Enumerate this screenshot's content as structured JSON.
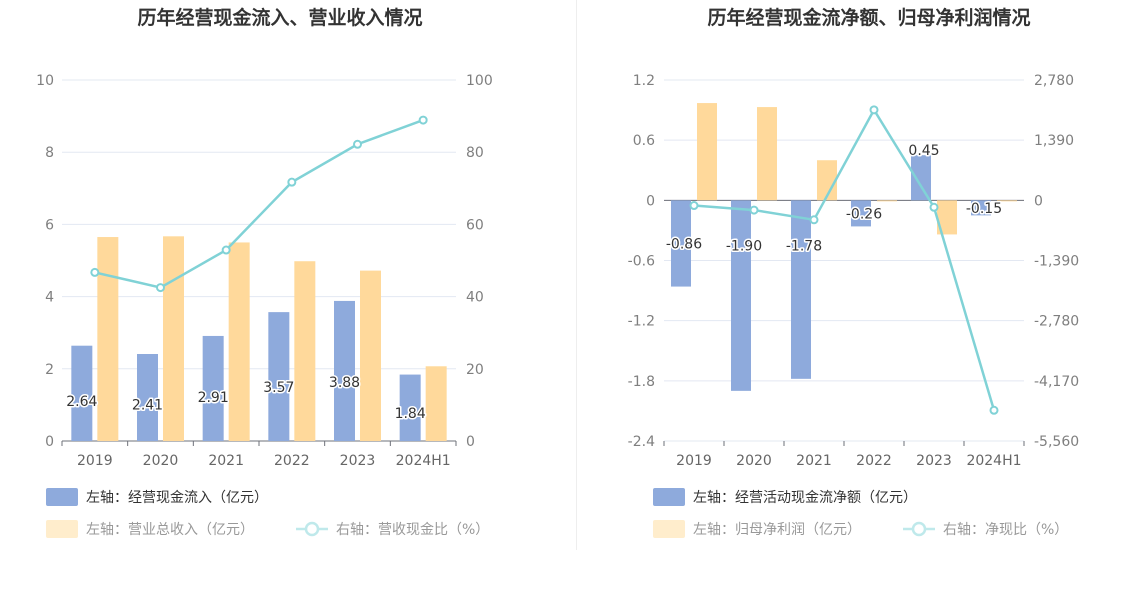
{
  "charts_layout": "two-panel",
  "chart_data": [
    {
      "type": "bar",
      "title": "历年经营现金流入、营业收入情况",
      "categories": [
        "2019",
        "2020",
        "2021",
        "2022",
        "2023",
        "2024H1"
      ],
      "y_left": {
        "ylim": [
          0,
          10
        ],
        "ticks": [
          "0",
          "2",
          "4",
          "6",
          "8",
          "10"
        ]
      },
      "y_right": {
        "ylim": [
          0,
          100
        ],
        "ticks": [
          "0",
          "20",
          "40",
          "60",
          "80",
          "100"
        ]
      },
      "series": [
        {
          "name": "左轴：经营现金流入（亿元）",
          "type": "bar",
          "axis": "left",
          "color": "#8eaadc",
          "values": [
            2.64,
            2.41,
            2.91,
            3.57,
            3.88,
            1.84
          ],
          "labels": [
            "2.64",
            "2.41",
            "2.91",
            "3.57",
            "3.88",
            "1.84"
          ]
        },
        {
          "name": "左轴：营业总收入（亿元）",
          "type": "bar",
          "axis": "left",
          "color": "#ffd99b",
          "values": [
            5.65,
            5.67,
            5.5,
            4.98,
            4.72,
            2.07
          ]
        },
        {
          "name": "右轴：营收现金比（%）",
          "type": "line",
          "axis": "right",
          "color": "#80d2d6",
          "values": [
            46.7,
            42.5,
            52.9,
            71.7,
            82.2,
            88.9
          ]
        }
      ],
      "legend_position": "bottom-left",
      "grid": true
    },
    {
      "type": "bar",
      "title": "历年经营现金流净额、归母净利润情况",
      "categories": [
        "2019",
        "2020",
        "2021",
        "2022",
        "2023",
        "2024H1"
      ],
      "y_left": {
        "ylim": [
          -2.4,
          1.2
        ],
        "ticks": [
          "-2.4",
          "-1.8",
          "-1.2",
          "-0.6",
          "0",
          "0.6",
          "1.2"
        ]
      },
      "y_right": {
        "ylim": [
          -5560,
          2780
        ],
        "ticks": [
          "-5,560",
          "-4,170",
          "-2,780",
          "-1,390",
          "0",
          "1,390",
          "2,780"
        ]
      },
      "series": [
        {
          "name": "左轴：经营活动现金流净额（亿元）",
          "type": "bar",
          "axis": "left",
          "color": "#8eaadc",
          "values": [
            -0.86,
            -1.9,
            -1.78,
            -0.26,
            0.45,
            -0.15
          ],
          "labels": [
            "-0.86",
            "-1.90",
            "-1.78",
            "-0.26",
            "0.45",
            "-0.15"
          ]
        },
        {
          "name": "左轴：归母净利润（亿元）",
          "type": "bar",
          "axis": "left",
          "color": "#ffd99b",
          "values": [
            0.97,
            0.93,
            0.4,
            -0.01,
            -0.34,
            -0.01
          ]
        },
        {
          "name": "右轴：净现比（%）",
          "type": "line",
          "axis": "right",
          "color": "#80d2d6",
          "values": [
            -120,
            -225,
            -450,
            2090,
            -160,
            -4850
          ]
        }
      ],
      "legend_position": "bottom-left",
      "grid": true
    }
  ]
}
